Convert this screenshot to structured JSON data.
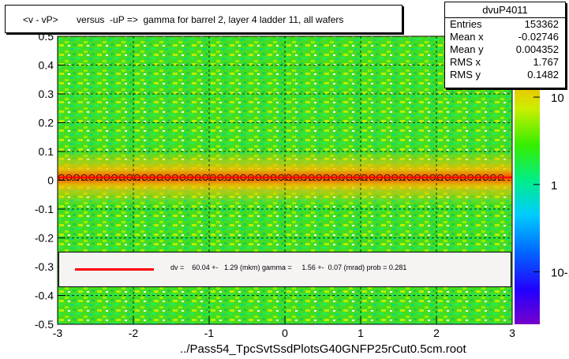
{
  "title": "<v - vP>       versus  -uP =>  gamma for barrel 2, layer 4 ladder 11, all wafers",
  "footer": "../Pass54_TpcSvtSsdPlotsG40GNFP25rCut0.5cm.root",
  "stats": {
    "name": "dvuP4011",
    "rows": [
      {
        "label": "Entries",
        "value": "153362"
      },
      {
        "label": "Mean x",
        "value": "-0.02746"
      },
      {
        "label": "Mean y",
        "value": "0.004352"
      },
      {
        "label": "RMS x",
        "value": "1.767"
      },
      {
        "label": "RMS y",
        "value": "0.1482"
      }
    ]
  },
  "legend": {
    "text": "dv =    60.04 +-   1.29 (mkm) gamma =     1.56 +-  0.07 (mrad) prob = 0.281",
    "line_color": "#ff0000"
  },
  "chart_data": {
    "type": "heatmap",
    "xlim": [
      -3,
      3
    ],
    "ylim": [
      -0.5,
      0.5
    ],
    "x_ticks": [
      -3,
      -2,
      -1,
      0,
      1,
      2,
      3
    ],
    "y_ticks": [
      -0.5,
      -0.4,
      -0.3,
      -0.2,
      -0.1,
      0,
      0.1,
      0.2,
      0.3,
      0.4,
      0.5
    ],
    "z_scale": "log",
    "z_ticks": [
      {
        "label": "10",
        "value": 10
      },
      {
        "label": "1",
        "value": 1
      },
      {
        "label": "10-1",
        "value": 0.1
      }
    ],
    "grid": true,
    "fit_line": {
      "color": "#ff0000",
      "y_at_xmin": 0.0601,
      "y_at_xmax": 0.0601
    },
    "profile_y": 0.01
  }
}
